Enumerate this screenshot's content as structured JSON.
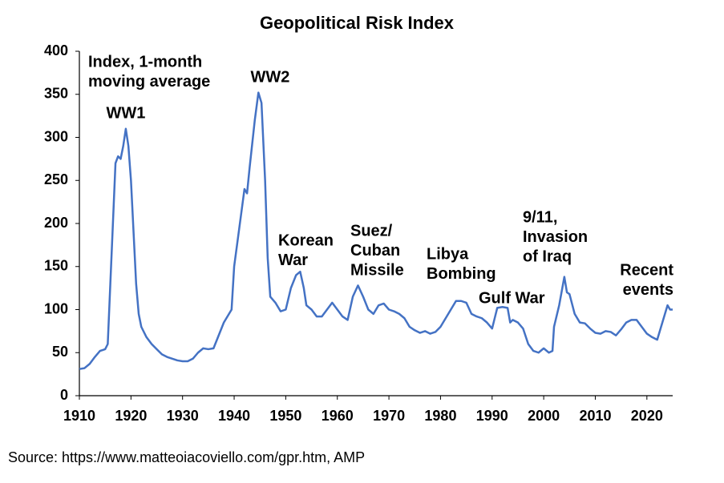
{
  "chart_data": {
    "type": "line",
    "title": "Geopolitical Risk Index",
    "source": "Source: https://www.matteoiacoviello.com/gpr.htm, AMP",
    "x": [
      1910,
      1911,
      1912,
      1913,
      1914,
      1914.5,
      1915,
      1915.5,
      1916,
      1916.5,
      1917,
      1917.5,
      1918,
      1918.5,
      1919,
      1919.5,
      1920,
      1920.5,
      1921,
      1921.5,
      1922,
      1923,
      1924,
      1925,
      1926,
      1927,
      1928,
      1929,
      1930,
      1931,
      1932,
      1933,
      1934,
      1935,
      1936,
      1937,
      1938,
      1939,
      1939.5,
      1940,
      1941,
      1942,
      1942.5,
      1943,
      1944,
      1944.7,
      1945.3,
      1946,
      1946.5,
      1947,
      1948,
      1949,
      1950,
      1951,
      1952,
      1952.8,
      1953.5,
      1954,
      1955,
      1956,
      1957,
      1958,
      1959,
      1960,
      1961,
      1962,
      1963,
      1964,
      1965,
      1966,
      1967,
      1968,
      1969,
      1970,
      1971,
      1972,
      1973,
      1974,
      1975,
      1976,
      1977,
      1978,
      1979,
      1980,
      1981,
      1982,
      1983,
      1984,
      1985,
      1986,
      1987,
      1988,
      1989,
      1990,
      1990.5,
      1991,
      1992,
      1993,
      1993.5,
      1994,
      1995,
      1996,
      1997,
      1998,
      1999,
      2000,
      2001,
      2001.7,
      2002,
      2003,
      2004,
      2004.5,
      2005,
      2006,
      2007,
      2008,
      2009,
      2010,
      2011,
      2012,
      2013,
      2014,
      2015,
      2016,
      2017,
      2018,
      2019,
      2020,
      2021,
      2022,
      2023,
      2024,
      2024.5,
      2025
    ],
    "series": [
      {
        "name": "Index, 1-month moving average",
        "color": "#4472c4",
        "values": [
          31,
          32,
          37,
          45,
          52,
          53,
          54,
          60,
          130,
          200,
          270,
          278,
          275,
          290,
          310,
          290,
          250,
          190,
          130,
          95,
          80,
          68,
          60,
          54,
          48,
          45,
          43,
          41,
          40,
          40,
          43,
          50,
          55,
          54,
          55,
          70,
          85,
          95,
          100,
          150,
          195,
          240,
          235,
          265,
          320,
          352,
          340,
          250,
          160,
          115,
          108,
          98,
          100,
          125,
          140,
          144,
          125,
          105,
          100,
          92,
          92,
          100,
          108,
          100,
          92,
          88,
          115,
          128,
          115,
          100,
          95,
          105,
          107,
          100,
          98,
          95,
          90,
          80,
          76,
          73,
          75,
          72,
          74,
          80,
          90,
          100,
          110,
          110,
          108,
          95,
          92,
          90,
          85,
          78,
          90,
          102,
          103,
          102,
          85,
          88,
          85,
          78,
          60,
          52,
          50,
          55,
          50,
          52,
          80,
          105,
          138,
          120,
          118,
          95,
          85,
          84,
          78,
          73,
          72,
          75,
          74,
          70,
          77,
          85,
          88,
          88,
          80,
          72,
          68,
          65,
          85,
          105,
          100,
          100
        ]
      }
    ],
    "xlim": [
      1910,
      2025
    ],
    "xticks": [
      1910,
      1920,
      1930,
      1940,
      1950,
      1960,
      1970,
      1980,
      1990,
      2000,
      2010,
      2020
    ],
    "ylim": [
      0,
      400
    ],
    "yticks": [
      0,
      50,
      100,
      150,
      200,
      250,
      300,
      350,
      400
    ],
    "grid": false,
    "annotations": [
      {
        "lines": [
          "Index, 1-month",
          "moving average"
        ]
      },
      {
        "lines": [
          "WW1"
        ]
      },
      {
        "lines": [
          "WW2"
        ]
      },
      {
        "lines": [
          "Korean",
          "War"
        ]
      },
      {
        "lines": [
          "Suez/",
          "Cuban",
          "Missile"
        ]
      },
      {
        "lines": [
          "Libya",
          "Bombing"
        ]
      },
      {
        "lines": [
          "Gulf War"
        ]
      },
      {
        "lines": [
          "9/11,",
          "Invasion",
          "of Iraq"
        ]
      },
      {
        "lines": [
          "Recent",
          "events"
        ],
        "color": "#e8141c"
      }
    ]
  }
}
